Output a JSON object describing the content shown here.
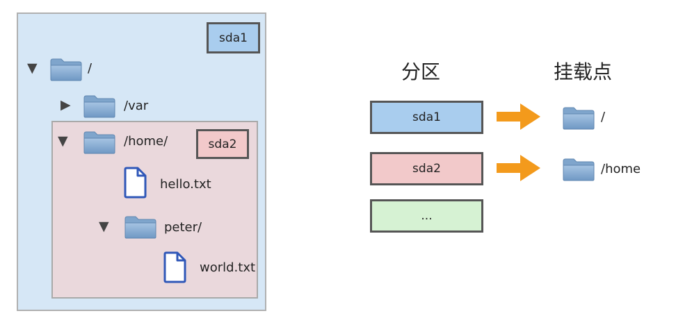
{
  "tree": {
    "sda1_tag": "sda1",
    "sda2_tag": "sda2",
    "root_label": "/",
    "var_label": "/var",
    "home_label": "/home/",
    "hello_label": "hello.txt",
    "peter_label": "peter/",
    "world_label": "world.txt"
  },
  "table": {
    "partition_heading": "分区",
    "mount_heading": "挂载点",
    "rows": [
      {
        "partition": "sda1",
        "mount": "/"
      },
      {
        "partition": "sda2",
        "mount": "/home"
      },
      {
        "partition": "..."
      }
    ]
  },
  "colors": {
    "sda1_fill": "#a9cdee",
    "sda2_fill": "#f2c9ca",
    "other_fill": "#d6f2d3",
    "arrow": "#f39a1c",
    "folder": "#7ea7cf",
    "file_outline": "#2f57b8"
  },
  "icons": [
    "folder-icon",
    "file-icon",
    "triangle-down-icon",
    "triangle-right-icon",
    "arrow-right-icon"
  ]
}
